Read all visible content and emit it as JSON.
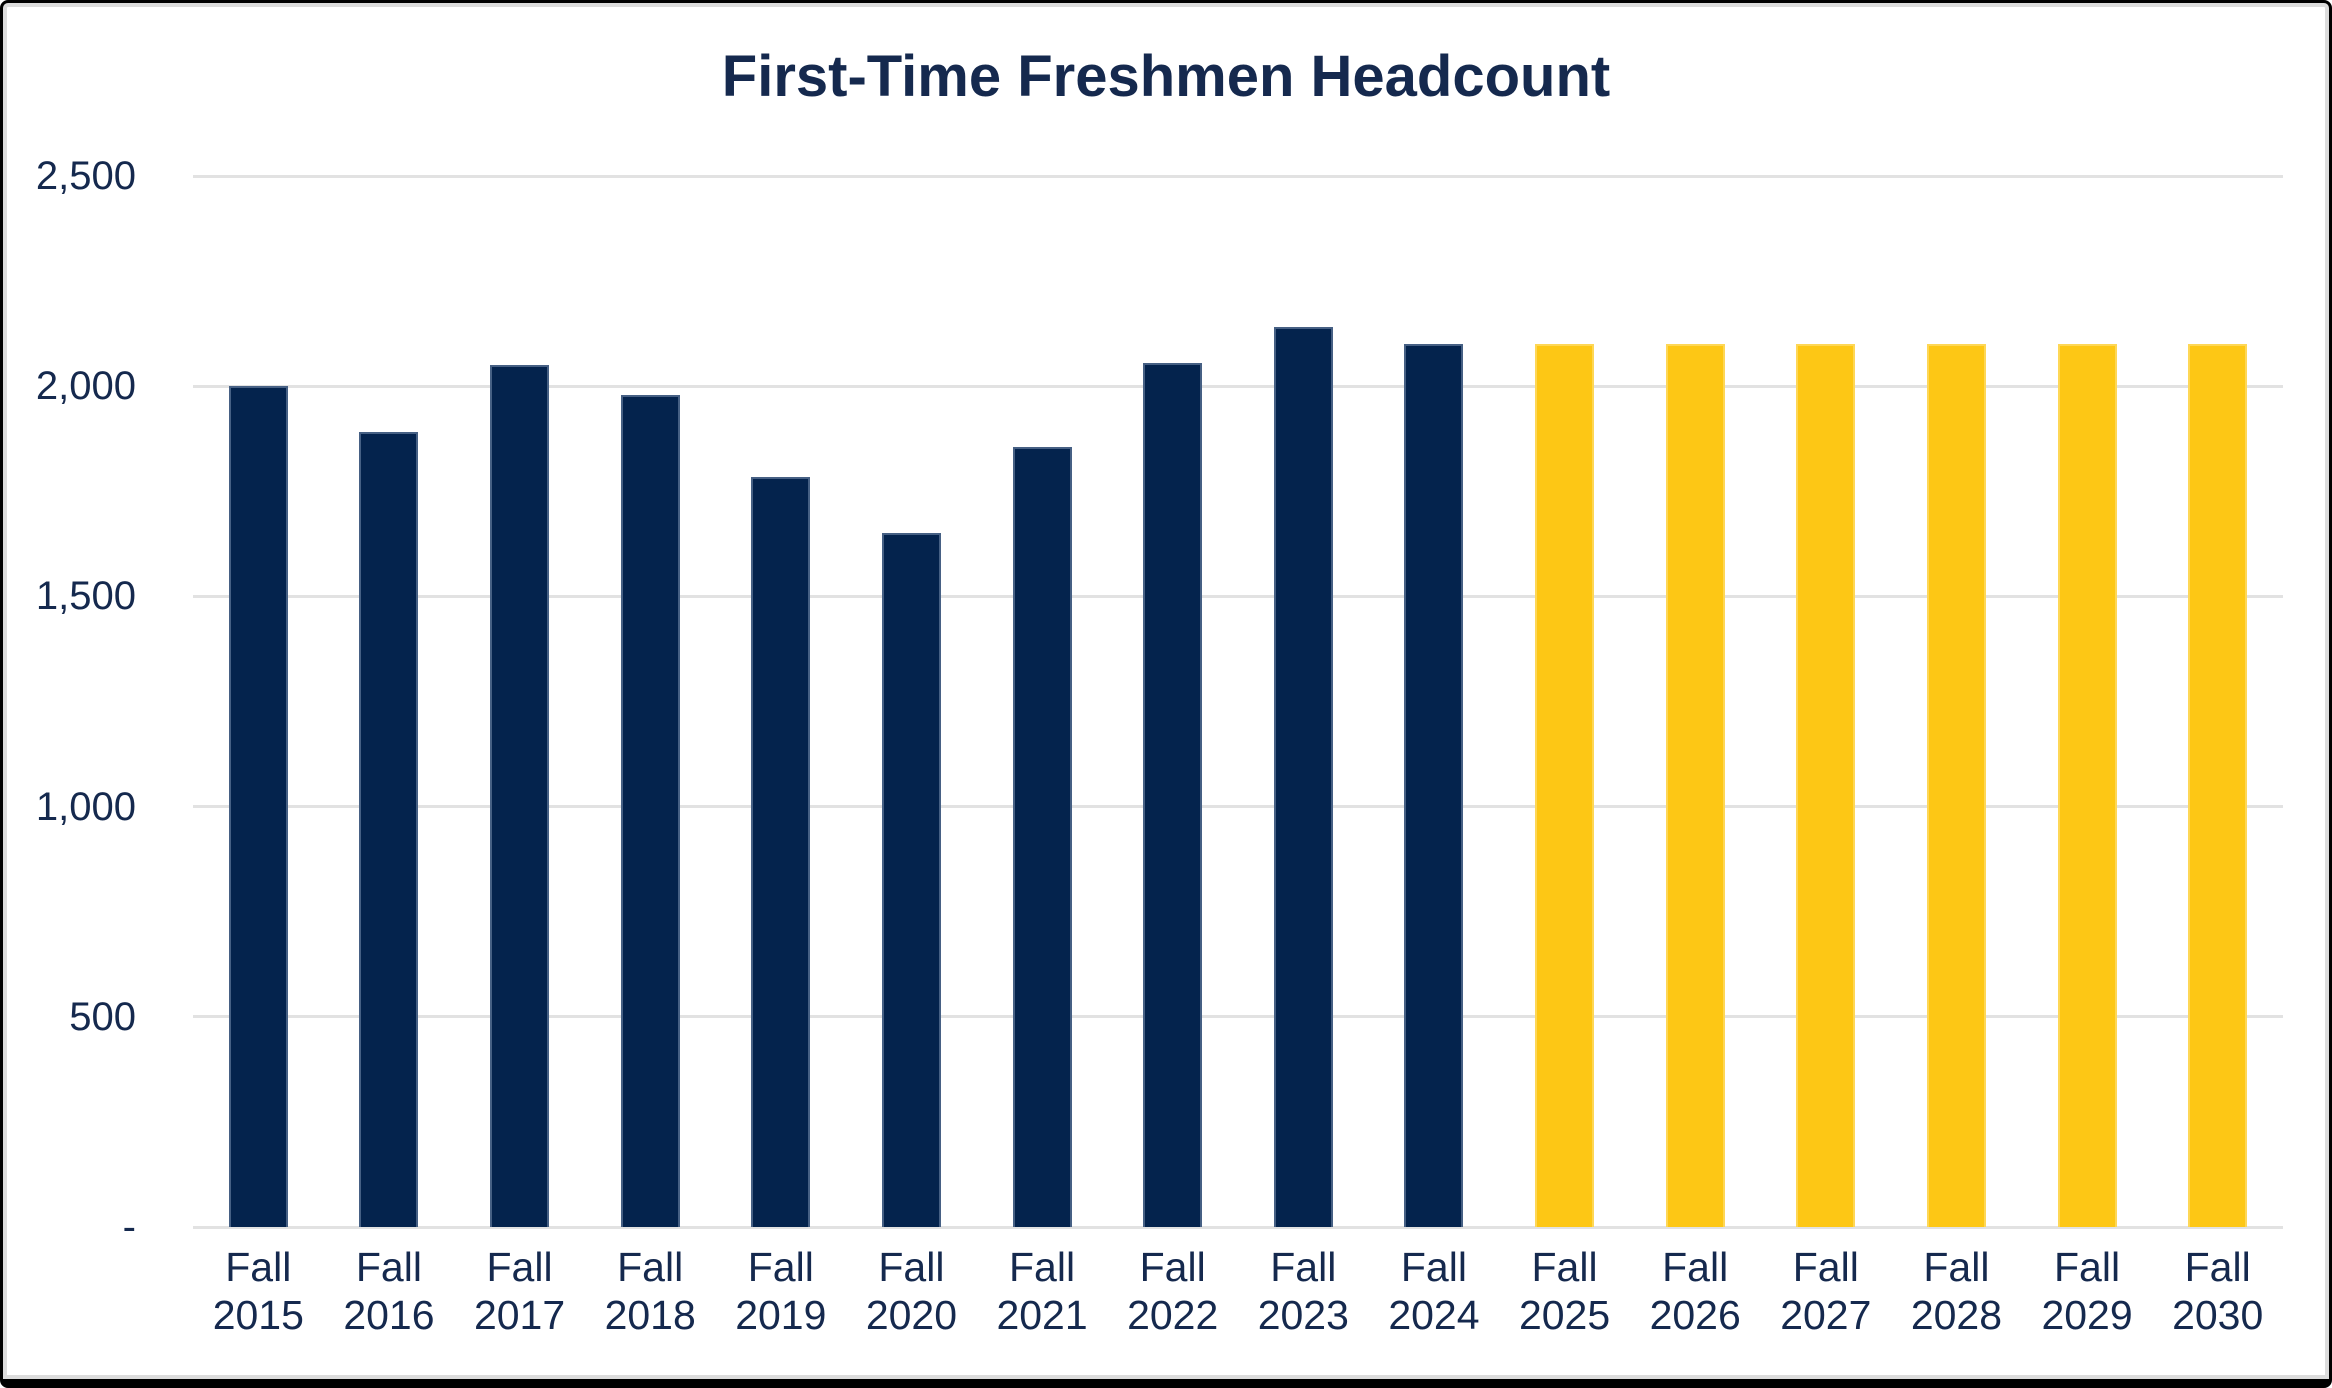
{
  "chart_data": {
    "type": "bar",
    "title": "First-Time Freshmen Headcount",
    "categories": [
      "Fall 2015",
      "Fall 2016",
      "Fall 2017",
      "Fall 2018",
      "Fall 2019",
      "Fall 2020",
      "Fall 2021",
      "Fall 2022",
      "Fall 2023",
      "Fall 2024",
      "Fall 2025",
      "Fall 2026",
      "Fall 2027",
      "Fall 2028",
      "Fall 2029",
      "Fall 2030"
    ],
    "values": [
      2000,
      1890,
      2050,
      1980,
      1785,
      1650,
      1855,
      2055,
      2140,
      2100,
      2100,
      2100,
      2100,
      2100,
      2100,
      2100
    ],
    "projected_start_index": 10,
    "xlabel": "",
    "ylabel": "",
    "ylim": [
      0,
      2500
    ],
    "y_ticks": [
      {
        "value": 2500,
        "label": "2,500"
      },
      {
        "value": 2000,
        "label": "2,000"
      },
      {
        "value": 1500,
        "label": "1,500"
      },
      {
        "value": 1000,
        "label": "1,000"
      },
      {
        "value": 500,
        "label": "500"
      },
      {
        "value": 0,
        "label": "-"
      }
    ],
    "grid": "horizontal",
    "legend": "none",
    "colors": {
      "actual_bar": "#04234d",
      "projected_bar": "#fdc715",
      "text": "#15294e",
      "gridline": "#e2e2e2",
      "background": "#ffffff",
      "frame_border": "#000000"
    }
  }
}
